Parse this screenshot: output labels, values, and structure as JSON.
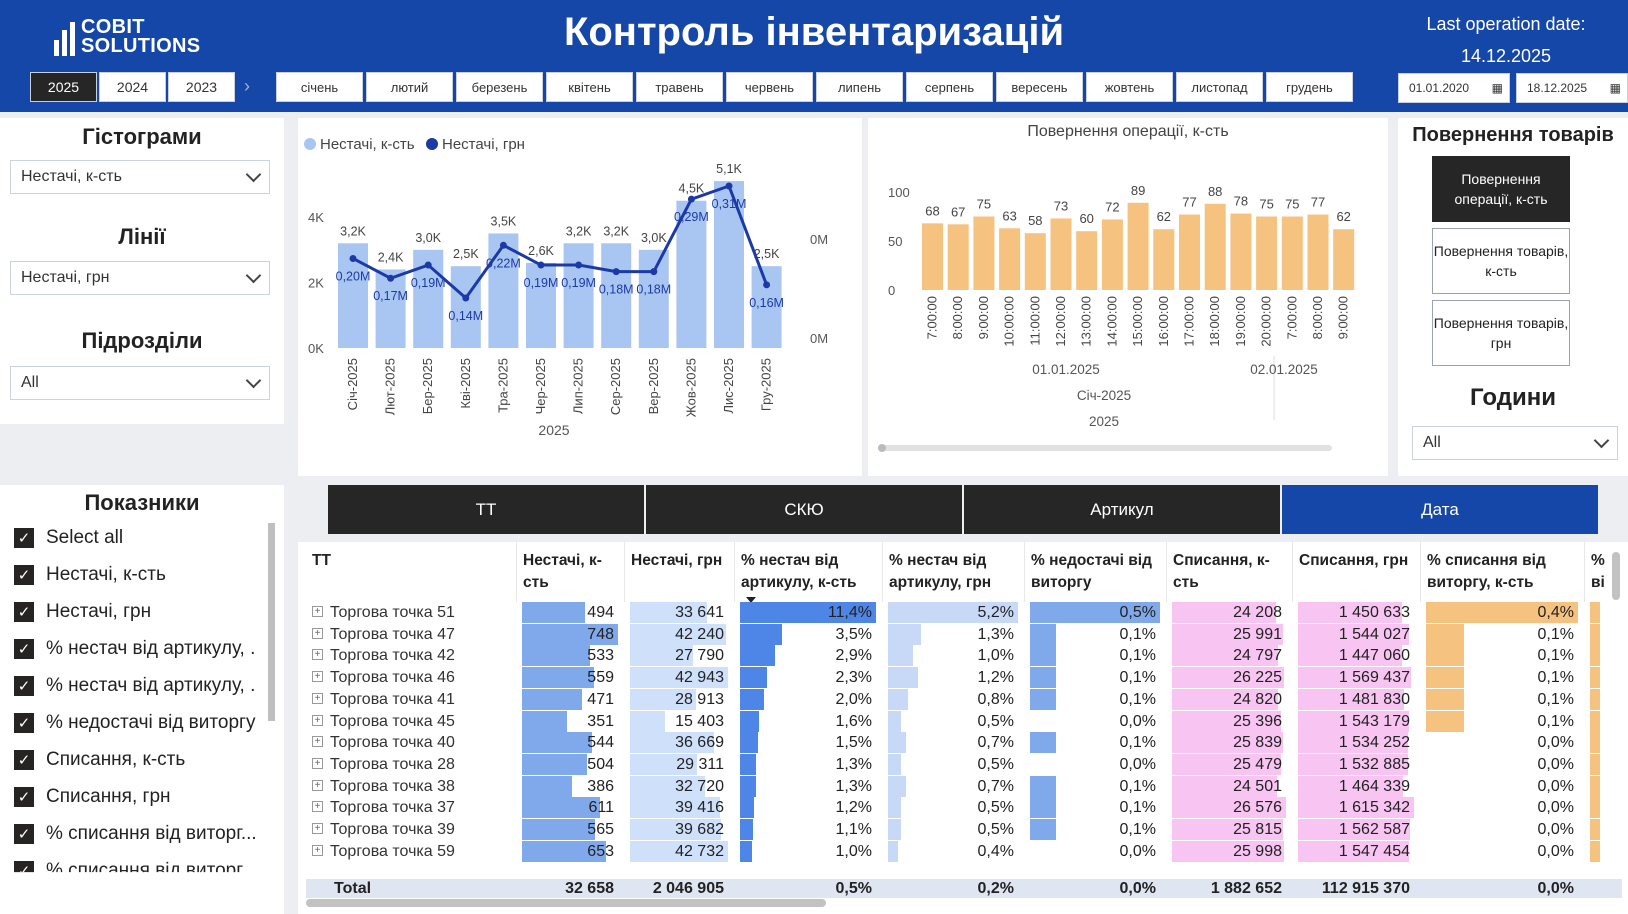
{
  "header": {
    "logo_line1": "COBIT",
    "logo_line2": "SOLUTIONS",
    "title": "Контроль інвентаризацій",
    "last_op_label": "Last operation date:",
    "last_op_value": "14.12.2025"
  },
  "years": [
    "2025",
    "2024",
    "2023"
  ],
  "months": [
    "січень",
    "лютий",
    "березень",
    "квітень",
    "травень",
    "червень",
    "липень",
    "серпень",
    "вересень",
    "жовтень",
    "листопад",
    "грудень"
  ],
  "date_range": {
    "from": "01.01.2020",
    "to": "18.12.2025"
  },
  "filters": {
    "hist_title": "Гістограми",
    "hist_value": "Нестачі, к-сть",
    "lines_title": "Лінії",
    "lines_value": "Нестачі, грн",
    "units_title": "Підрозділи",
    "units_value": "All",
    "hours_title": "Години",
    "hours_value": "All",
    "returns_title": "Повернення товарів"
  },
  "indicators": {
    "title": "Показники",
    "items": [
      "Select all",
      "Нестачі, к-сть",
      "Нестачі, грн",
      "% нестач від артикулу, .",
      "% нестач від артикулу, .",
      "% недостачі від виторгу",
      "Списання, к-сть",
      "Списання, грн",
      "% списання від виторг...",
      "% списання від виторг..."
    ]
  },
  "return_buttons": [
    "Повернення операції, к-сть",
    "Повернення товарів, к-сть",
    "Повернення товарів, грн"
  ],
  "tabs": [
    "ТТ",
    "СКЮ",
    "Артикул",
    "Дата"
  ],
  "colors": {
    "brand": "#1547a8",
    "bar_light": "#a9c6f2",
    "line": "#1c3aa6",
    "orange": "#f6c27f",
    "pink": "#f7c6f1"
  },
  "chart_data": [
    {
      "type": "bar",
      "legend": [
        "Нестачі, к-сть",
        "Нестачі, грн"
      ],
      "categories": [
        "Січ-2025",
        "Лют-2025",
        "Бер-2025",
        "Кві-2025",
        "Тра-2025",
        "Чер-2025",
        "Лип-2025",
        "Сер-2025",
        "Вер-2025",
        "Жов-2025",
        "Лис-2025",
        "Гру-2025"
      ],
      "series": [
        {
          "name": "Нестачі, к-сть",
          "values": [
            3.2,
            2.4,
            3.0,
            2.5,
            3.5,
            2.6,
            3.2,
            3.2,
            3.0,
            4.5,
            5.1,
            2.5
          ],
          "labels": [
            "3,2K",
            "2,4K",
            "3,0K",
            "2,5K",
            "3,5K",
            "2,6K",
            "3,2K",
            "3,2K",
            "3,0K",
            "4,5K",
            "5,1K",
            "2,5K"
          ]
        },
        {
          "name": "Нестачі, грн",
          "values": [
            0.2,
            0.17,
            0.19,
            0.14,
            0.22,
            0.19,
            0.19,
            0.18,
            0.18,
            0.29,
            0.31,
            0.16
          ],
          "labels": [
            "0,20M",
            "0,17M",
            "0,19M",
            "0,14M",
            "0,22M",
            "0,19M",
            "0,19M",
            "0,18M",
            "0,18M",
            "0,29M",
            "0,31M",
            "0,16M"
          ]
        }
      ],
      "y_ticks": [
        "0K",
        "2K",
        "4K"
      ],
      "y2_ticks": [
        "0M",
        "0M"
      ],
      "ylim": [
        0,
        5.5
      ],
      "xlabel": "2025"
    },
    {
      "type": "bar",
      "title": "Повернення операції, к-сть",
      "categories": [
        "7:00:00",
        "8:00:00",
        "9:00:00",
        "10:00:00",
        "11:00:00",
        "12:00:00",
        "13:00:00",
        "14:00:00",
        "15:00:00",
        "16:00:00",
        "17:00:00",
        "18:00:00",
        "19:00:00",
        "20:00:00",
        "7:00:00",
        "8:00:00",
        "9:00:00"
      ],
      "values": [
        68,
        67,
        75,
        63,
        58,
        73,
        60,
        72,
        89,
        62,
        77,
        88,
        78,
        75,
        75,
        77,
        62
      ],
      "y_ticks": [
        "0",
        "50",
        "100"
      ],
      "ylim": [
        0,
        100
      ],
      "date_labels": [
        "01.01.2025",
        "02.01.2025"
      ],
      "month_label": "Січ-2025",
      "year_label": "2025"
    }
  ],
  "table": {
    "headers": [
      "ТТ",
      "Нестачі, к-сть",
      "Нестачі, грн",
      "% нестач від артикулу, к-сть",
      "% нестач від артикулу, грн",
      "% недостачі від виторгу",
      "Списання, к-сть",
      "Списання, грн",
      "% списання від виторгу, к-сть",
      "% ві"
    ],
    "rows": [
      [
        "Торгова точка 51",
        "494",
        "33 641",
        "11,4%",
        "5,2%",
        "0,5%",
        "24 208",
        "1 450 633",
        "0,4%"
      ],
      [
        "Торгова точка 47",
        "748",
        "42 240",
        "3,5%",
        "1,3%",
        "0,1%",
        "25 991",
        "1 544 027",
        "0,1%"
      ],
      [
        "Торгова точка 42",
        "533",
        "27 790",
        "2,9%",
        "1,0%",
        "0,1%",
        "24 797",
        "1 447 060",
        "0,1%"
      ],
      [
        "Торгова точка 46",
        "559",
        "42 943",
        "2,3%",
        "1,2%",
        "0,1%",
        "26 225",
        "1 569 437",
        "0,1%"
      ],
      [
        "Торгова точка 41",
        "471",
        "28 913",
        "2,0%",
        "0,8%",
        "0,1%",
        "24 820",
        "1 481 830",
        "0,1%"
      ],
      [
        "Торгова точка 45",
        "351",
        "15 403",
        "1,6%",
        "0,5%",
        "0,0%",
        "25 396",
        "1 543 179",
        "0,1%"
      ],
      [
        "Торгова точка 40",
        "544",
        "36 669",
        "1,5%",
        "0,7%",
        "0,1%",
        "25 839",
        "1 534 252",
        "0,0%"
      ],
      [
        "Торгова точка 28",
        "504",
        "29 311",
        "1,3%",
        "0,5%",
        "0,0%",
        "25 479",
        "1 532 885",
        "0,0%"
      ],
      [
        "Торгова точка 38",
        "386",
        "32 720",
        "1,3%",
        "0,7%",
        "0,1%",
        "24 501",
        "1 464 339",
        "0,0%"
      ],
      [
        "Торгова точка 37",
        "611",
        "39 416",
        "1,2%",
        "0,5%",
        "0,1%",
        "26 576",
        "1 615 342",
        "0,0%"
      ],
      [
        "Торгова точка 39",
        "565",
        "39 682",
        "1,1%",
        "0,5%",
        "0,1%",
        "25 815",
        "1 562 587",
        "0,0%"
      ],
      [
        "Торгова точка 59",
        "653",
        "42 732",
        "1,0%",
        "0,4%",
        "0,0%",
        "25 998",
        "1 547 454",
        "0,0%"
      ]
    ],
    "total": [
      "Total",
      "32 658",
      "2 046 905",
      "0,5%",
      "0,2%",
      "0,0%",
      "1 882 652",
      "112 915 370",
      "0,0%"
    ]
  }
}
